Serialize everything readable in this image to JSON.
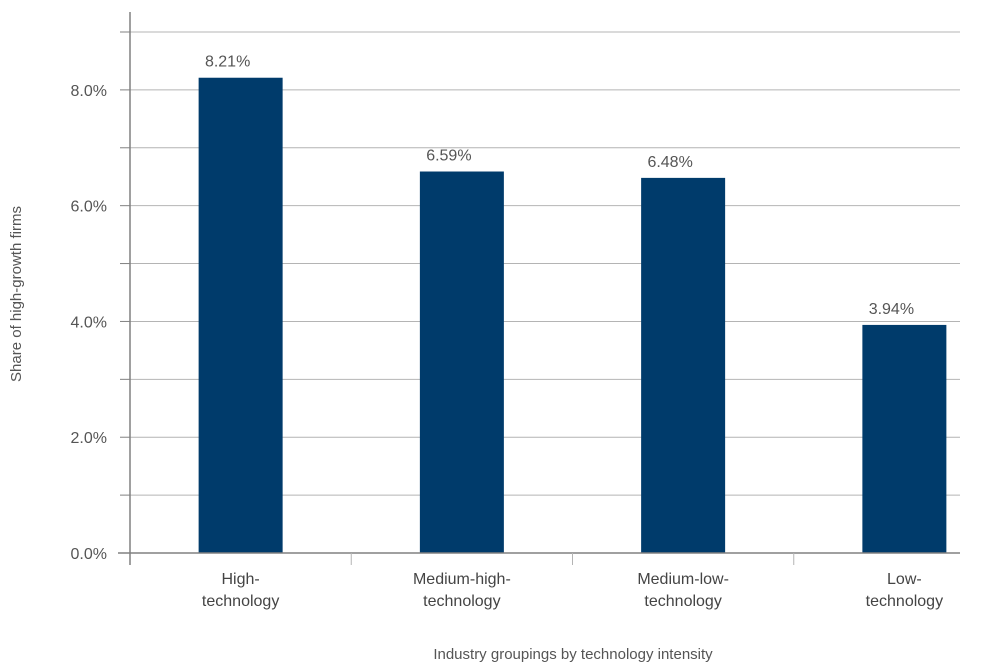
{
  "chart_data": {
    "type": "bar",
    "xlabel": "Industry groupings by technology intensity",
    "ylabel": "Share of high-growth firms",
    "categories": [
      [
        "High-",
        "technology"
      ],
      [
        "Medium-high-",
        "technology"
      ],
      [
        "Medium-low-",
        "technology"
      ],
      [
        "Low-",
        "technology"
      ]
    ],
    "values": [
      8.21,
      6.59,
      6.48,
      3.94
    ],
    "data_labels": [
      "8.21%",
      "6.59%",
      "6.48%",
      "3.94%"
    ],
    "ylim": [
      0,
      9
    ],
    "yticks": [
      0,
      2,
      4,
      6,
      8
    ],
    "ytick_labels": [
      "0.0%",
      "2.0%",
      "4.0%",
      "6.0%",
      "8.0%"
    ],
    "minor_gridlines": [
      1,
      3,
      5,
      7,
      9
    ],
    "grid": true,
    "legend": "none",
    "bar_color": "#003b6b",
    "grid_color": "#b4b4b4",
    "axis_color": "#808080"
  }
}
